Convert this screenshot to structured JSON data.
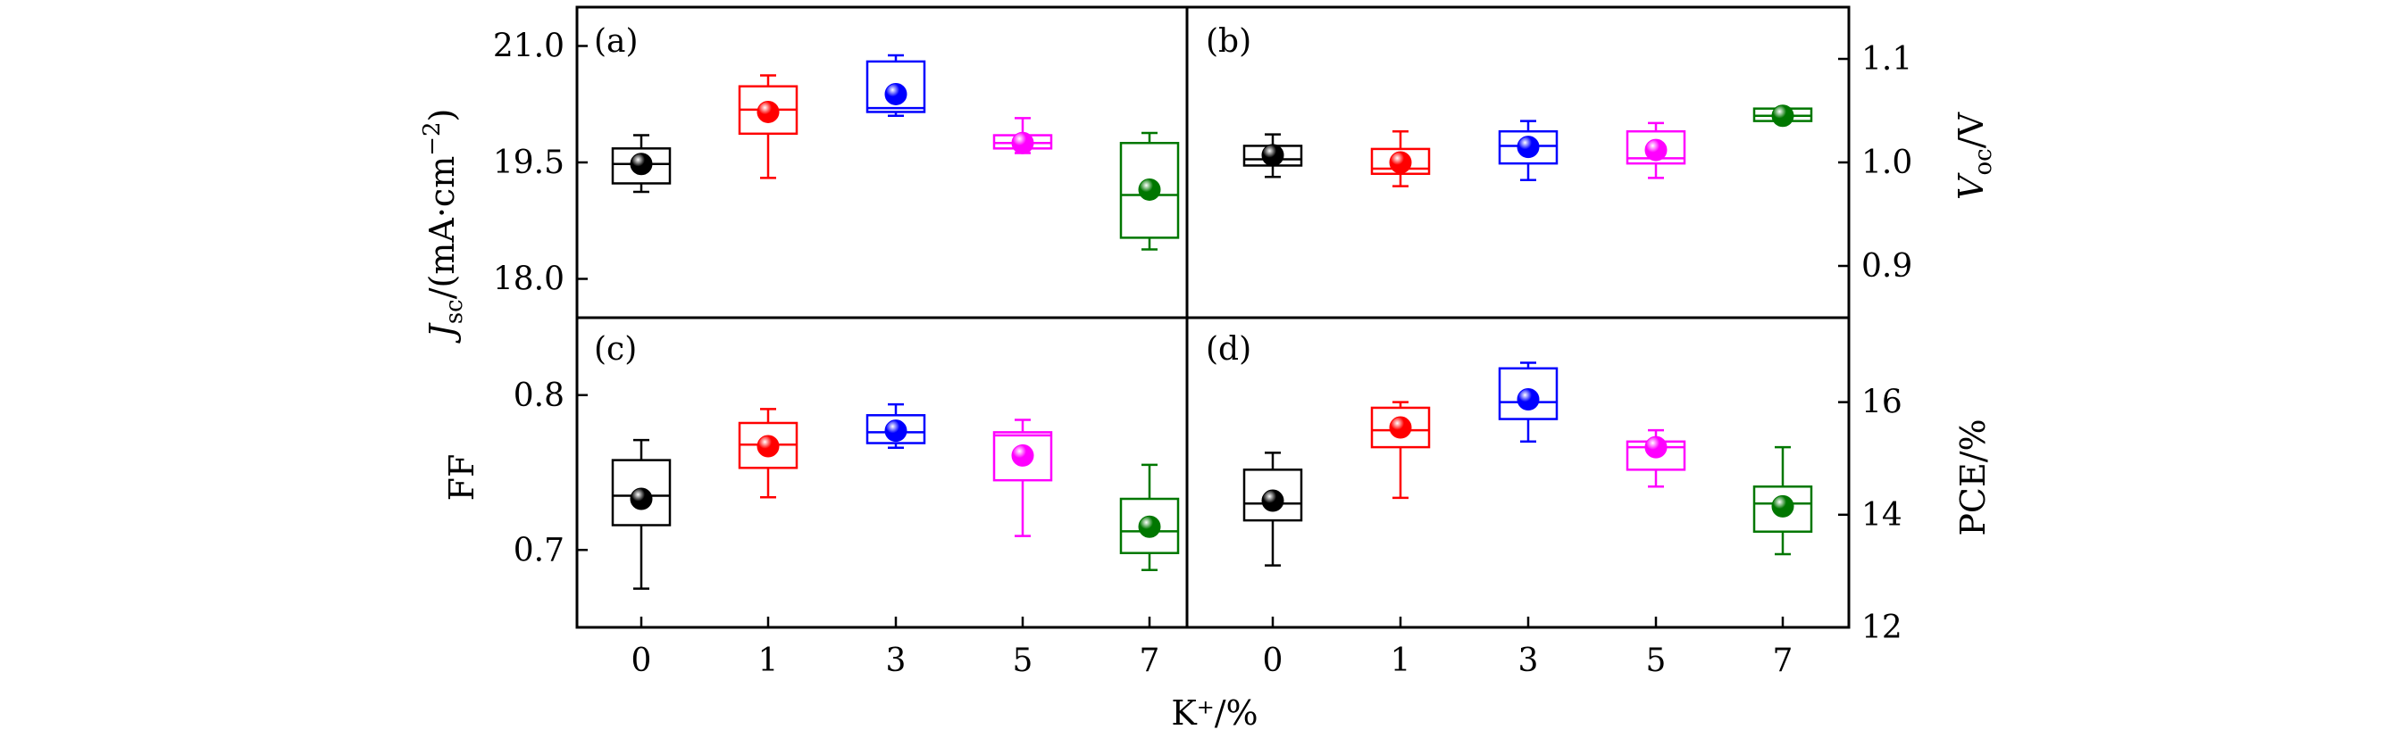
{
  "figure": {
    "x_axis_label": "K⁺/%"
  },
  "colors": {
    "0": "#000000",
    "1": "#ff0000",
    "3": "#0000ff",
    "5": "#ff00ff",
    "7": "#007700"
  },
  "chart_data": [
    {
      "type": "box",
      "panel": "(a)",
      "ylabel_main": "J",
      "ylabel_sub": "sc",
      "ylabel_unit": "/(mA·cm",
      "ylabel_sup": "−2",
      "ylabel_close": ")",
      "ylim": [
        17.5,
        21.5
      ],
      "yticks": [
        18.0,
        19.5,
        21.0
      ],
      "ytick_labels": [
        "18.0",
        "19.5",
        "21.0"
      ],
      "categories": [
        "0",
        "1",
        "3",
        "5",
        "7"
      ],
      "boxes": [
        {
          "cat": "0",
          "wlo": 19.12,
          "q1": 19.23,
          "med": 19.48,
          "q3": 19.68,
          "whi": 19.85,
          "mean": 19.48
        },
        {
          "cat": "1",
          "wlo": 19.3,
          "q1": 19.87,
          "med": 20.18,
          "q3": 20.48,
          "whi": 20.62,
          "mean": 20.15
        },
        {
          "cat": "3",
          "wlo": 20.1,
          "q1": 20.15,
          "med": 20.2,
          "q3": 20.8,
          "whi": 20.88,
          "mean": 20.38
        },
        {
          "cat": "5",
          "wlo": 19.62,
          "q1": 19.68,
          "med": 19.75,
          "q3": 19.85,
          "whi": 20.07,
          "mean": 19.75
        },
        {
          "cat": "7",
          "wlo": 18.38,
          "q1": 18.53,
          "med": 19.08,
          "q3": 19.75,
          "whi": 19.88,
          "mean": 19.15
        }
      ]
    },
    {
      "type": "box",
      "panel": "(b)",
      "ylabel_main": "V",
      "ylabel_sub": "oc",
      "ylabel_unit": "/V",
      "ylim": [
        0.85,
        1.15
      ],
      "yticks": [
        0.9,
        1.0,
        1.1
      ],
      "ytick_labels": [
        "0.9",
        "1.0",
        "1.1"
      ],
      "categories": [
        "0",
        "1",
        "3",
        "5",
        "7"
      ],
      "boxes": [
        {
          "cat": "0",
          "wlo": 0.986,
          "q1": 0.997,
          "med": 1.003,
          "q3": 1.016,
          "whi": 1.027,
          "mean": 1.007
        },
        {
          "cat": "1",
          "wlo": 0.977,
          "q1": 0.989,
          "med": 0.994,
          "q3": 1.013,
          "whi": 1.03,
          "mean": 1.0
        },
        {
          "cat": "3",
          "wlo": 0.983,
          "q1": 0.999,
          "med": 1.016,
          "q3": 1.03,
          "whi": 1.04,
          "mean": 1.015
        },
        {
          "cat": "5",
          "wlo": 0.985,
          "q1": 0.999,
          "med": 1.004,
          "q3": 1.03,
          "whi": 1.038,
          "mean": 1.012
        },
        {
          "cat": "7",
          "wlo": 1.04,
          "q1": 1.04,
          "med": 1.045,
          "q3": 1.052,
          "whi": 1.052,
          "mean": 1.045
        }
      ]
    },
    {
      "type": "box",
      "panel": "(c)",
      "ylabel_main": "FF",
      "ylim": [
        0.65,
        0.85
      ],
      "yticks": [
        0.7,
        0.8
      ],
      "ytick_labels": [
        "0.7",
        "0.8"
      ],
      "categories": [
        "0",
        "1",
        "3",
        "5",
        "7"
      ],
      "boxes": [
        {
          "cat": "0",
          "wlo": 0.675,
          "q1": 0.716,
          "med": 0.735,
          "q3": 0.758,
          "whi": 0.771,
          "mean": 0.733
        },
        {
          "cat": "1",
          "wlo": 0.734,
          "q1": 0.753,
          "med": 0.768,
          "q3": 0.782,
          "whi": 0.791,
          "mean": 0.767
        },
        {
          "cat": "3",
          "wlo": 0.766,
          "q1": 0.769,
          "med": 0.776,
          "q3": 0.787,
          "whi": 0.794,
          "mean": 0.777
        },
        {
          "cat": "5",
          "wlo": 0.709,
          "q1": 0.745,
          "med": 0.774,
          "q3": 0.776,
          "whi": 0.784,
          "mean": 0.761
        },
        {
          "cat": "7",
          "wlo": 0.687,
          "q1": 0.698,
          "med": 0.712,
          "q3": 0.733,
          "whi": 0.755,
          "mean": 0.715
        }
      ]
    },
    {
      "type": "box",
      "panel": "(d)",
      "ylabel_main": "PCE/%",
      "ylim": [
        12,
        17.5
      ],
      "yticks": [
        12,
        14,
        16
      ],
      "ytick_labels": [
        "12",
        "14",
        "16"
      ],
      "categories": [
        "0",
        "1",
        "3",
        "5",
        "7"
      ],
      "boxes": [
        {
          "cat": "0",
          "wlo": 13.1,
          "q1": 13.9,
          "med": 14.2,
          "q3": 14.8,
          "whi": 15.1,
          "mean": 14.25
        },
        {
          "cat": "1",
          "wlo": 14.3,
          "q1": 15.2,
          "med": 15.5,
          "q3": 15.9,
          "whi": 16.0,
          "mean": 15.55
        },
        {
          "cat": "3",
          "wlo": 15.3,
          "q1": 15.7,
          "med": 16.0,
          "q3": 16.6,
          "whi": 16.7,
          "mean": 16.05
        },
        {
          "cat": "5",
          "wlo": 14.5,
          "q1": 14.8,
          "med": 15.2,
          "q3": 15.3,
          "whi": 15.5,
          "mean": 15.2
        },
        {
          "cat": "7",
          "wlo": 13.3,
          "q1": 13.7,
          "med": 14.2,
          "q3": 14.5,
          "whi": 15.2,
          "mean": 14.15
        }
      ]
    }
  ]
}
